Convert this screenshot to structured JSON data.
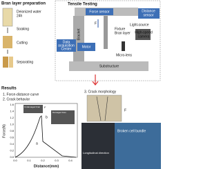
{
  "preparation": {
    "title": "Bran layer preparation",
    "water": [
      "Deionized water",
      "24h"
    ],
    "steps": [
      "Soaking",
      "Cutting",
      "Separating"
    ]
  },
  "tensile": {
    "title": "Tensile Testing",
    "force_sensor": "Force sensor",
    "distance_sensor": [
      "Distance",
      "sensor"
    ],
    "force": "F",
    "light": "Light-source",
    "camera": [
      "High-speed",
      "camera"
    ],
    "bracket": "Bracket",
    "fixture": "Fixture",
    "bran": "Bran layer",
    "center": [
      "Data",
      "acquisition",
      "Center"
    ],
    "motor": "Motor",
    "lens": "Micro-lens",
    "base": "Substructure"
  },
  "results": {
    "title": "Results",
    "items": [
      "1. Force-distance curve",
      "2. Crack behavior"
    ],
    "morphology": "3. Crack morphology",
    "plot": {
      "ylabel": "Force(N)",
      "xlabel": "Distance(mm)",
      "yticks": [
        "0.0",
        "0.2",
        "0.4",
        "0.6",
        "0.8",
        "1.0",
        "1.2",
        "1.4",
        "1.6"
      ],
      "xticks": [
        "0.0",
        "0.1",
        "0.2",
        "0.3",
        "0.4"
      ],
      "points": [
        "a",
        "b"
      ],
      "insets": [
        "Undamaged bran",
        "Damaged bran"
      ],
      "force": "F"
    },
    "images": {
      "force": "F",
      "direction": "Longitudinal direction",
      "broken": "Broken cell bundle"
    }
  }
}
